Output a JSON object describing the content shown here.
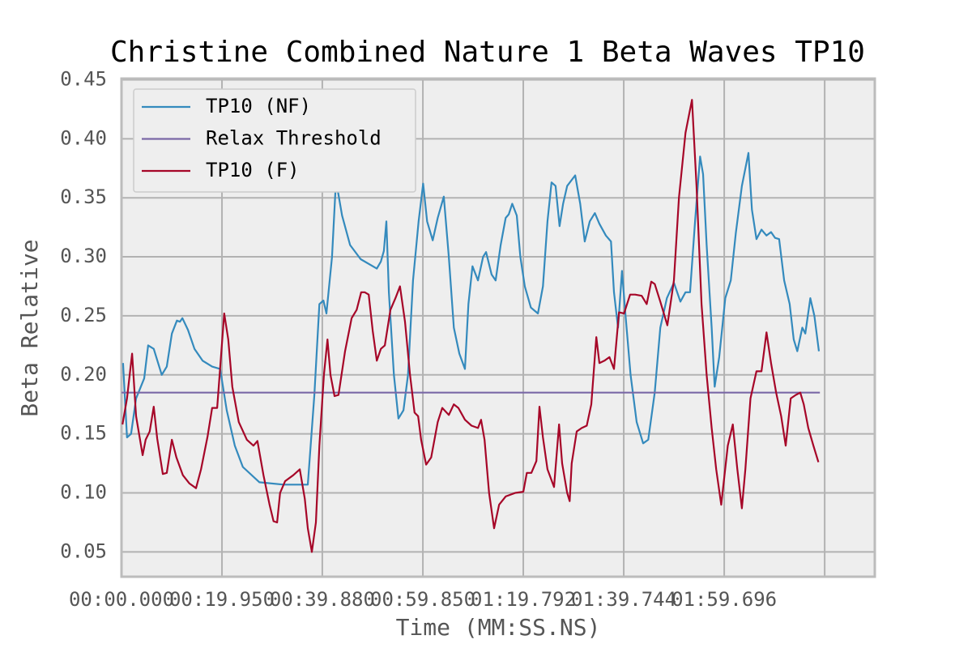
{
  "chart_data": {
    "type": "line",
    "title": "Christine Combined Nature 1 Beta Waves TP10",
    "x_label": "Time (MM:SS.NS)",
    "y_label": "Beta Relative",
    "xlim": [
      0,
      149.6
    ],
    "ylim": [
      0.029,
      0.451
    ],
    "xticks": [
      {
        "value": 0,
        "label": "00:00.000"
      },
      {
        "value": 19.95,
        "label": "00:19.950"
      },
      {
        "value": 39.88,
        "label": "00:39.880"
      },
      {
        "value": 59.85,
        "label": "00:59.850"
      },
      {
        "value": 79.792,
        "label": "01:19.792"
      },
      {
        "value": 99.744,
        "label": "01:39.744"
      },
      {
        "value": 119.696,
        "label": "01:59.696"
      },
      {
        "value": 139.648,
        "label": null
      }
    ],
    "yticks": [
      {
        "value": 0.05,
        "label": "0.05"
      },
      {
        "value": 0.1,
        "label": "0.10"
      },
      {
        "value": 0.15,
        "label": "0.15"
      },
      {
        "value": 0.2,
        "label": "0.20"
      },
      {
        "value": 0.25,
        "label": "0.25"
      },
      {
        "value": 0.3,
        "label": "0.30"
      },
      {
        "value": 0.35,
        "label": "0.35"
      },
      {
        "value": 0.4,
        "label": "0.40"
      },
      {
        "value": 0.45,
        "label": "0.45"
      }
    ],
    "grid": true,
    "legend": "upper left",
    "series": [
      {
        "name": "TP10 (NF)",
        "color": "#348abd",
        "x": [
          0.3,
          1.1,
          1.9,
          2.9,
          4.5,
          5.3,
          6.4,
          8.0,
          9.0,
          10.0,
          11.0,
          11.6,
          12.1,
          13.2,
          14.5,
          16.1,
          18.0,
          19.6,
          20.9,
          22.5,
          24.1,
          27.4,
          32.2,
          37.0,
          38.3,
          39.3,
          40.1,
          40.7,
          41.8,
          42.6,
          43.8,
          45.4,
          47.5,
          50.7,
          51.5,
          52.1,
          52.6,
          53.1,
          54.1,
          55.0,
          56.0,
          56.9,
          57.9,
          59.0,
          59.9,
          60.7,
          61.8,
          62.8,
          64.0,
          65.0,
          66.0,
          67.1,
          68.2,
          68.9,
          69.7,
          70.8,
          71.8,
          72.4,
          73.5,
          74.3,
          75.3,
          76.3,
          76.9,
          77.6,
          78.5,
          79.2,
          80.1,
          81.3,
          82.7,
          83.7,
          84.6,
          85.4,
          86.2,
          87.0,
          87.7,
          88.5,
          90.1,
          91.1,
          92.0,
          93.0,
          94.0,
          94.9,
          96.2,
          97.2,
          97.8,
          98.6,
          99.4,
          100.1,
          101.1,
          102.3,
          103.6,
          104.6,
          105.9,
          107.0,
          108.3,
          109.7,
          111.0,
          112.0,
          112.9,
          113.9,
          114.9,
          115.5,
          116.2,
          117.2,
          117.8,
          118.7,
          119.9,
          121.0,
          122.0,
          123.2,
          124.5,
          125.2,
          126.1,
          127.1,
          128.1,
          129.0,
          129.8,
          130.6,
          131.6,
          132.7,
          133.5,
          134.2,
          135.2,
          135.8,
          136.8,
          137.6,
          138.5
        ],
        "values": [
          0.21,
          0.147,
          0.15,
          0.18,
          0.197,
          0.225,
          0.222,
          0.2,
          0.207,
          0.235,
          0.246,
          0.245,
          0.248,
          0.238,
          0.222,
          0.212,
          0.207,
          0.205,
          0.17,
          0.14,
          0.122,
          0.109,
          0.107,
          0.107,
          0.183,
          0.26,
          0.263,
          0.252,
          0.3,
          0.365,
          0.335,
          0.31,
          0.298,
          0.29,
          0.296,
          0.305,
          0.33,
          0.27,
          0.2,
          0.163,
          0.17,
          0.2,
          0.28,
          0.33,
          0.362,
          0.33,
          0.314,
          0.333,
          0.351,
          0.3,
          0.24,
          0.218,
          0.205,
          0.26,
          0.292,
          0.28,
          0.3,
          0.304,
          0.285,
          0.28,
          0.31,
          0.333,
          0.336,
          0.345,
          0.335,
          0.3,
          0.275,
          0.257,
          0.252,
          0.275,
          0.33,
          0.363,
          0.36,
          0.326,
          0.345,
          0.36,
          0.369,
          0.345,
          0.313,
          0.33,
          0.337,
          0.328,
          0.318,
          0.313,
          0.27,
          0.24,
          0.288,
          0.25,
          0.2,
          0.16,
          0.142,
          0.145,
          0.185,
          0.24,
          0.265,
          0.278,
          0.262,
          0.27,
          0.27,
          0.33,
          0.385,
          0.37,
          0.31,
          0.24,
          0.19,
          0.215,
          0.265,
          0.28,
          0.32,
          0.36,
          0.388,
          0.34,
          0.315,
          0.323,
          0.318,
          0.321,
          0.316,
          0.315,
          0.28,
          0.26,
          0.23,
          0.22,
          0.24,
          0.235,
          0.265,
          0.25,
          0.22
        ]
      },
      {
        "name": "Relax Threshold",
        "color": "#7a68a6",
        "x": [
          0.0,
          138.7
        ],
        "values": [
          0.185,
          0.185
        ]
      },
      {
        "name": "TP10 (F)",
        "color": "#a60628",
        "x": [
          0.2,
          1.1,
          2.1,
          2.9,
          4.2,
          4.8,
          5.6,
          6.4,
          7.1,
          8.2,
          9.0,
          10.0,
          10.9,
          12.2,
          13.5,
          14.8,
          15.8,
          17.1,
          18.0,
          19.0,
          19.8,
          20.4,
          21.2,
          22.0,
          23.3,
          24.9,
          26.2,
          27.0,
          28.2,
          29.4,
          30.2,
          30.9,
          31.5,
          32.5,
          34.1,
          35.4,
          36.4,
          37.0,
          37.8,
          38.6,
          39.3,
          40.2,
          40.9,
          41.5,
          42.3,
          43.1,
          44.4,
          45.7,
          46.7,
          47.6,
          48.3,
          49.1,
          49.9,
          50.7,
          51.5,
          52.3,
          53.4,
          54.4,
          55.3,
          56.3,
          57.3,
          58.2,
          58.9,
          59.5,
          60.5,
          61.5,
          62.8,
          63.7,
          65.0,
          66.0,
          66.9,
          68.2,
          69.5,
          70.8,
          71.4,
          72.1,
          73.0,
          74.0,
          75.0,
          76.3,
          78.2,
          79.8,
          80.5,
          81.4,
          82.4,
          83.0,
          83.7,
          84.6,
          85.9,
          86.9,
          87.5,
          88.5,
          89.0,
          89.4,
          90.4,
          91.4,
          92.4,
          93.3,
          94.3,
          94.9,
          95.9,
          96.9,
          97.8,
          98.8,
          99.8,
          101.0,
          102.0,
          103.3,
          104.3,
          105.2,
          105.9,
          107.0,
          108.4,
          109.7,
          110.7,
          112.0,
          113.3,
          114.2,
          115.2,
          116.2,
          117.2,
          118.1,
          119.1,
          120.4,
          121.4,
          122.3,
          123.2,
          123.9,
          124.9,
          126.1,
          127.1,
          128.1,
          129.0,
          130.0,
          131.0,
          131.9,
          132.9,
          133.9,
          134.8,
          135.5,
          136.4,
          137.4,
          138.4
        ],
        "values": [
          0.158,
          0.18,
          0.218,
          0.165,
          0.132,
          0.145,
          0.152,
          0.173,
          0.146,
          0.116,
          0.117,
          0.145,
          0.13,
          0.115,
          0.108,
          0.104,
          0.12,
          0.148,
          0.172,
          0.172,
          0.218,
          0.252,
          0.23,
          0.19,
          0.16,
          0.145,
          0.14,
          0.144,
          0.115,
          0.09,
          0.076,
          0.075,
          0.1,
          0.11,
          0.115,
          0.12,
          0.095,
          0.07,
          0.05,
          0.075,
          0.14,
          0.2,
          0.23,
          0.2,
          0.182,
          0.183,
          0.22,
          0.248,
          0.255,
          0.27,
          0.27,
          0.268,
          0.237,
          0.212,
          0.222,
          0.225,
          0.255,
          0.265,
          0.275,
          0.245,
          0.2,
          0.168,
          0.165,
          0.145,
          0.124,
          0.13,
          0.16,
          0.172,
          0.166,
          0.175,
          0.172,
          0.162,
          0.157,
          0.155,
          0.162,
          0.145,
          0.1,
          0.07,
          0.09,
          0.097,
          0.1,
          0.101,
          0.117,
          0.117,
          0.127,
          0.173,
          0.147,
          0.12,
          0.105,
          0.158,
          0.125,
          0.1,
          0.093,
          0.125,
          0.152,
          0.155,
          0.157,
          0.175,
          0.232,
          0.21,
          0.212,
          0.215,
          0.205,
          0.253,
          0.252,
          0.268,
          0.268,
          0.267,
          0.26,
          0.279,
          0.277,
          0.262,
          0.242,
          0.28,
          0.35,
          0.405,
          0.433,
          0.36,
          0.26,
          0.2,
          0.155,
          0.12,
          0.09,
          0.14,
          0.158,
          0.12,
          0.087,
          0.12,
          0.18,
          0.203,
          0.203,
          0.236,
          0.21,
          0.185,
          0.165,
          0.14,
          0.18,
          0.183,
          0.185,
          0.175,
          0.155,
          0.14,
          0.126
        ]
      }
    ]
  }
}
